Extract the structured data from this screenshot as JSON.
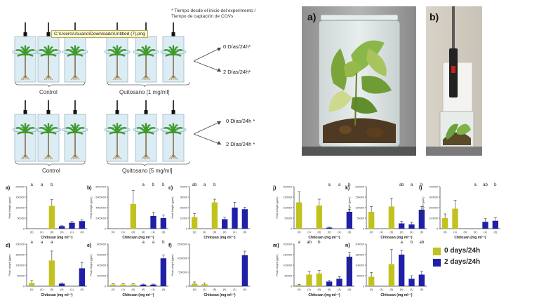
{
  "note_line1": "* Tiempo desde el inicio del experimento /",
  "note_line2": "Tiempo de captación de COVs",
  "tooltip": "C:\\Users\\Usuario\\Downloads\\Untitled (7).png",
  "row1": {
    "control": "Control",
    "treat": "Quitosano [1 mg/ml]",
    "out1": "0 Días/24h*",
    "out2": "2 Días/24h*"
  },
  "row2": {
    "control": "Control",
    "treat": "Quitosano [5 mg/ml]",
    "out1": "0 Días/24h *",
    "out2": "2 Días/24h *"
  },
  "photos": {
    "a": "a)",
    "b": "b)"
  },
  "legend": {
    "s0": "0 days/24h",
    "s1": "2 days/24h",
    "color0": "#c2c21e",
    "color1": "#1f1fa8"
  },
  "axis": {
    "ylabel": "Peak height (ppm)",
    "xlabel": "Chitosan (mg ml⁻¹)",
    "ticks": [
      "(0)",
      "(1)",
      "(5)",
      "(0)",
      "(1)",
      "(5)"
    ]
  },
  "chart_data": [
    {
      "type": "bar",
      "panel": "a)",
      "ymax": 200000,
      "yticks": [
        "0",
        "50000",
        "100000",
        "150000",
        "200000"
      ],
      "letters": [
        "a",
        "a",
        "b"
      ],
      "letter_series": 0,
      "series": [
        {
          "values": [
            0,
            0,
            108000
          ],
          "err": [
            0,
            0,
            30000
          ]
        },
        {
          "values": [
            12000,
            28000,
            36000
          ],
          "err": [
            2000,
            6000,
            7000
          ]
        }
      ]
    },
    {
      "type": "bar",
      "panel": "b)",
      "ymax": 8000000,
      "yticks": [
        "0",
        "2000000",
        "4000000",
        "6000000",
        "8000000"
      ],
      "letters": [
        "a",
        "b",
        "b"
      ],
      "letter_series": 1,
      "series": [
        {
          "values": [
            0,
            0,
            4700000
          ],
          "err": [
            0,
            0,
            2600000
          ]
        },
        {
          "values": [
            0,
            2400000,
            2000000
          ],
          "err": [
            0,
            700000,
            600000
          ]
        }
      ]
    },
    {
      "type": "bar",
      "panel": "c)",
      "ymax": 40000,
      "yticks": [
        "0",
        "10000",
        "20000",
        "30000",
        "40000"
      ],
      "letters": [
        "ab",
        "a",
        "b"
      ],
      "letter_series": 0,
      "series": [
        {
          "values": [
            11000,
            0,
            25000
          ],
          "err": [
            3500,
            0,
            3000
          ]
        },
        {
          "values": [
            9000,
            20000,
            18500
          ],
          "err": [
            2000,
            5000,
            2000
          ]
        }
      ]
    },
    {
      "type": "bar",
      "panel": "d)",
      "ymax": 200000,
      "yticks": [
        "0",
        "50000",
        "100000",
        "150000",
        "200000"
      ],
      "letters": [
        "a",
        "a",
        "a"
      ],
      "letter_series": 0,
      "series": [
        {
          "values": [
            15000,
            0,
            122000
          ],
          "err": [
            12000,
            0,
            45000
          ]
        },
        {
          "values": [
            12000,
            0,
            85000
          ],
          "err": [
            4000,
            0,
            28000
          ]
        }
      ]
    },
    {
      "type": "bar",
      "panel": "e)",
      "ymax": 800000,
      "yticks": [
        "0",
        "200000",
        "400000",
        "600000",
        "800000"
      ],
      "letters": [
        "a",
        "a",
        "b"
      ],
      "letter_series": 1,
      "series": [
        {
          "values": [
            30000,
            30000,
            30000
          ],
          "err": [
            15000,
            15000,
            15000
          ]
        },
        {
          "values": [
            30000,
            30000,
            530000
          ],
          "err": [
            10000,
            10000,
            60000
          ]
        }
      ]
    },
    {
      "type": "bar",
      "panel": "f)",
      "ymax": 1500000,
      "yticks": [
        "0",
        "500000",
        "1000000",
        "1500000"
      ],
      "letters": [],
      "letter_series": 1,
      "series": [
        {
          "values": [
            90000,
            70000,
            0
          ],
          "err": [
            60000,
            40000,
            0
          ]
        },
        {
          "values": [
            0,
            0,
            1100000
          ],
          "err": [
            0,
            0,
            150000
          ]
        }
      ]
    },
    {
      "type": "bar",
      "panel": "j)",
      "ymax": 200000,
      "yticks": [
        "0",
        "50000",
        "100000",
        "150000",
        "200000"
      ],
      "letters": [
        "a",
        "a",
        "b"
      ],
      "letter_series": 1,
      "series": [
        {
          "values": [
            125000,
            0,
            110000
          ],
          "err": [
            50000,
            0,
            30000
          ]
        },
        {
          "values": [
            5000,
            0,
            80000
          ],
          "err": [
            2000,
            0,
            12000
          ]
        }
      ]
    },
    {
      "type": "bar",
      "panel": "k)",
      "ymax": 200000,
      "yticks": [
        "0",
        "50000",
        "100000",
        "150000",
        "200000"
      ],
      "letters": [
        "ab",
        "a",
        "b"
      ],
      "letter_series": 1,
      "series": [
        {
          "values": [
            80000,
            0,
            105000
          ],
          "err": [
            25000,
            0,
            40000
          ]
        },
        {
          "values": [
            25000,
            20000,
            90000
          ],
          "err": [
            10000,
            10000,
            15000
          ]
        }
      ]
    },
    {
      "type": "bar",
      "panel": "l)",
      "ymax": 400000,
      "yticks": [
        "0",
        "100000",
        "200000",
        "300000",
        "400000"
      ],
      "letters": [
        "a",
        "ab",
        "b"
      ],
      "letter_series": 1,
      "series": [
        {
          "values": [
            100000,
            190000,
            0
          ],
          "err": [
            40000,
            80000,
            0
          ]
        },
        {
          "values": [
            0,
            65000,
            75000
          ],
          "err": [
            0,
            30000,
            30000
          ]
        }
      ]
    },
    {
      "type": "bar",
      "panel": "m)",
      "ymax": 200000,
      "yticks": [
        "0",
        "50000",
        "100000",
        "150000",
        "200000"
      ],
      "letters": [
        "a",
        "ab",
        "b"
      ],
      "letter_series": 0,
      "series": [
        {
          "values": [
            5000,
            55000,
            60000
          ],
          "err": [
            4000,
            15000,
            15000
          ]
        },
        {
          "values": [
            22000,
            35000,
            140000
          ],
          "err": [
            6000,
            10000,
            22000
          ]
        }
      ]
    },
    {
      "type": "bar",
      "panel": "n)",
      "ymax": 200000,
      "yticks": [
        "0",
        "50000",
        "100000",
        "150000",
        "200000"
      ],
      "letters": [
        "a",
        "b",
        "ab"
      ],
      "letter_series": 1,
      "series": [
        {
          "values": [
            45000,
            0,
            105000
          ],
          "err": [
            20000,
            0,
            70000
          ]
        },
        {
          "values": [
            150000,
            35000,
            55000
          ],
          "err": [
            20000,
            15000,
            15000
          ]
        }
      ]
    }
  ]
}
